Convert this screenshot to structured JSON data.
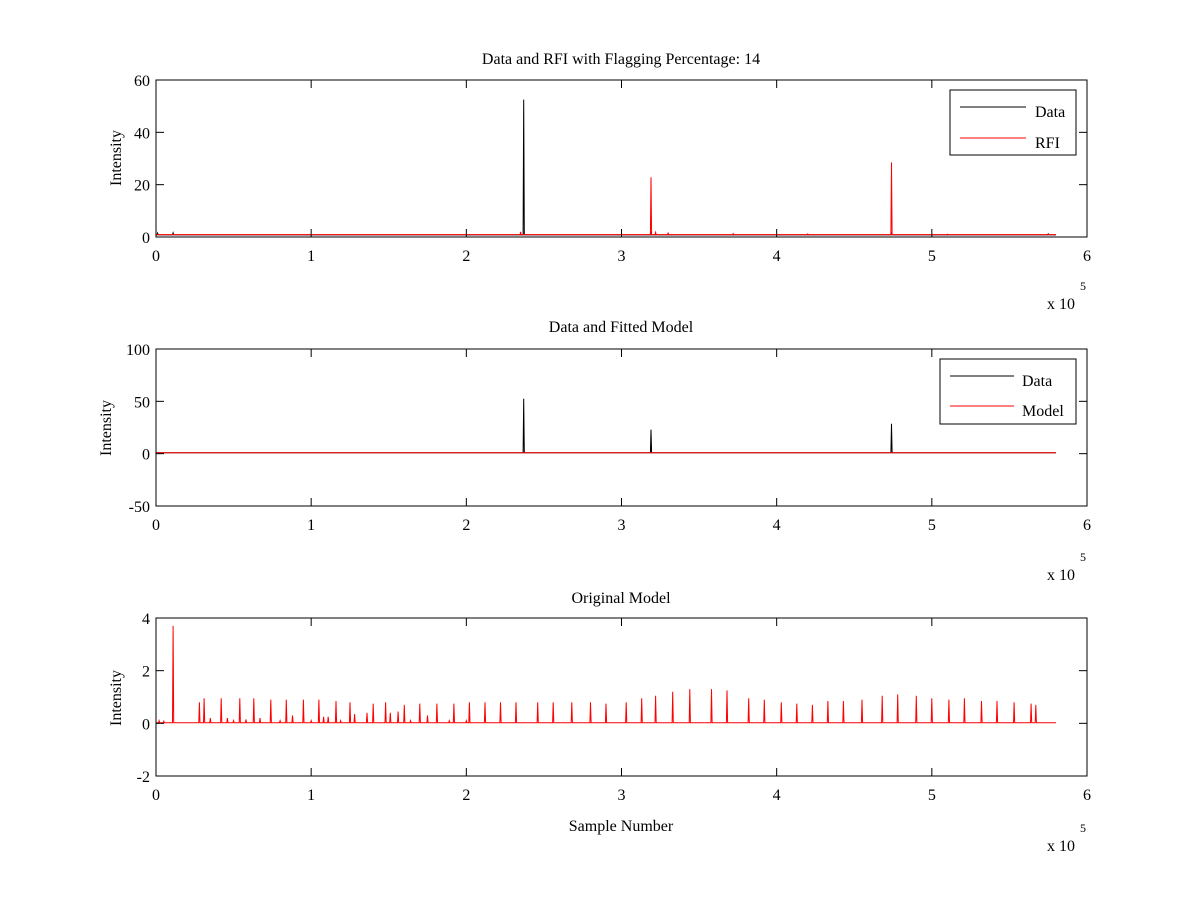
{
  "chart_data": [
    {
      "type": "line",
      "title": "Data and RFI with Flagging Percentage: 14",
      "xlabel": "",
      "ylabel": "Intensity",
      "xlim": [
        0,
        600000
      ],
      "ylim": [
        0,
        60
      ],
      "xticks": [
        0,
        100000,
        200000,
        300000,
        400000,
        500000,
        600000
      ],
      "xtick_labels": [
        "0",
        "1",
        "2",
        "3",
        "4",
        "5",
        "6"
      ],
      "yticks": [
        0,
        20,
        40,
        60
      ],
      "ytick_labels": [
        "0",
        "20",
        "40",
        "60"
      ],
      "x_multiplier_label": "x 10",
      "x_multiplier_exponent": "5",
      "grid": false,
      "legend": "top-right",
      "x_end": 580000,
      "series": [
        {
          "name": "Data",
          "color": "#000000",
          "baseline": 0.8,
          "spikes": [
            [
              1000,
              1.5
            ],
            [
              11000,
              1.6
            ],
            [
              237000,
              52.5
            ],
            [
              319000,
              2.0
            ],
            [
              474000,
              1.8
            ],
            [
              575000,
              1.2
            ]
          ]
        },
        {
          "name": "RFI",
          "color": "#ff0000",
          "baseline": 0.9,
          "spikes": [
            [
              235000,
              2.0
            ],
            [
              319000,
              22.8
            ],
            [
              322000,
              1.8
            ],
            [
              330000,
              1.5
            ],
            [
              372000,
              1.3
            ],
            [
              420000,
              1.2
            ],
            [
              474000,
              28.5
            ],
            [
              510000,
              1.1
            ]
          ]
        }
      ]
    },
    {
      "type": "line",
      "title": "Data and Fitted Model",
      "xlabel": "",
      "ylabel": "Intensity",
      "xlim": [
        0,
        600000
      ],
      "ylim": [
        -50,
        100
      ],
      "xticks": [
        0,
        100000,
        200000,
        300000,
        400000,
        500000,
        600000
      ],
      "xtick_labels": [
        "0",
        "1",
        "2",
        "3",
        "4",
        "5",
        "6"
      ],
      "yticks": [
        -50,
        0,
        50,
        100
      ],
      "ytick_labels": [
        "-50",
        "0",
        "50",
        "100"
      ],
      "x_multiplier_label": "x 10",
      "x_multiplier_exponent": "5",
      "grid": false,
      "legend": "top-right",
      "x_end": 580000,
      "series": [
        {
          "name": "Data",
          "color": "#000000",
          "baseline": 0.8,
          "spikes": [
            [
              237000,
              52.5
            ],
            [
              319000,
              23.0
            ],
            [
              474000,
              28.5
            ]
          ]
        },
        {
          "name": "Model",
          "color": "#ff0000",
          "baseline": 0.8,
          "spikes": []
        }
      ]
    },
    {
      "type": "line",
      "title": "Original Model",
      "xlabel": "Sample Number",
      "ylabel": "Intensity",
      "xlim": [
        0,
        600000
      ],
      "ylim": [
        -2,
        4
      ],
      "xticks": [
        0,
        100000,
        200000,
        300000,
        400000,
        500000,
        600000
      ],
      "xtick_labels": [
        "0",
        "1",
        "2",
        "3",
        "4",
        "5",
        "6"
      ],
      "yticks": [
        -2,
        0,
        2,
        4
      ],
      "ytick_labels": [
        "-2",
        "0",
        "2",
        "4"
      ],
      "x_multiplier_label": "x 10",
      "x_multiplier_exponent": "5",
      "grid": false,
      "legend": "none",
      "x_end": 580000,
      "series": [
        {
          "color": "#ff0000",
          "baseline": 0.02,
          "spikes": [
            [
              2000,
              0.1
            ],
            [
              5000,
              0.08
            ],
            [
              11000,
              3.7
            ],
            [
              28000,
              0.8
            ],
            [
              31000,
              0.95
            ],
            [
              35000,
              0.2
            ],
            [
              42000,
              0.95
            ],
            [
              46000,
              0.2
            ],
            [
              50000,
              0.1
            ],
            [
              54000,
              0.95
            ],
            [
              58000,
              0.15
            ],
            [
              63000,
              0.95
            ],
            [
              67000,
              0.2
            ],
            [
              74000,
              0.9
            ],
            [
              80000,
              0.1
            ],
            [
              84000,
              0.9
            ],
            [
              88000,
              0.3
            ],
            [
              95000,
              0.9
            ],
            [
              100000,
              0.1
            ],
            [
              105000,
              0.9
            ],
            [
              108000,
              0.25
            ],
            [
              111000,
              0.25
            ],
            [
              116000,
              0.85
            ],
            [
              119000,
              0.1
            ],
            [
              125000,
              0.8
            ],
            [
              128000,
              0.35
            ],
            [
              136000,
              0.4
            ],
            [
              140000,
              0.75
            ],
            [
              148000,
              0.8
            ],
            [
              151000,
              0.4
            ],
            [
              156000,
              0.45
            ],
            [
              160000,
              0.7
            ],
            [
              164000,
              0.1
            ],
            [
              170000,
              0.75
            ],
            [
              175000,
              0.3
            ],
            [
              181000,
              0.75
            ],
            [
              189000,
              0.1
            ],
            [
              192000,
              0.75
            ],
            [
              200000,
              0.1
            ],
            [
              202000,
              0.8
            ],
            [
              212000,
              0.8
            ],
            [
              222000,
              0.8
            ],
            [
              232000,
              0.8
            ],
            [
              246000,
              0.8
            ],
            [
              256000,
              0.8
            ],
            [
              268000,
              0.8
            ],
            [
              280000,
              0.8
            ],
            [
              290000,
              0.75
            ],
            [
              303000,
              0.8
            ],
            [
              313000,
              0.95
            ],
            [
              322000,
              1.05
            ],
            [
              333000,
              1.2
            ],
            [
              344000,
              1.3
            ],
            [
              358000,
              1.3
            ],
            [
              368000,
              1.25
            ],
            [
              382000,
              0.95
            ],
            [
              392000,
              0.9
            ],
            [
              403000,
              0.8
            ],
            [
              413000,
              0.75
            ],
            [
              423000,
              0.7
            ],
            [
              433000,
              0.85
            ],
            [
              443000,
              0.85
            ],
            [
              455000,
              0.9
            ],
            [
              468000,
              1.05
            ],
            [
              478000,
              1.1
            ],
            [
              490000,
              1.05
            ],
            [
              500000,
              0.95
            ],
            [
              511000,
              0.9
            ],
            [
              521000,
              0.95
            ],
            [
              532000,
              0.85
            ],
            [
              542000,
              0.85
            ],
            [
              553000,
              0.8
            ],
            [
              564000,
              0.75
            ],
            [
              567000,
              0.7
            ]
          ]
        }
      ]
    }
  ]
}
